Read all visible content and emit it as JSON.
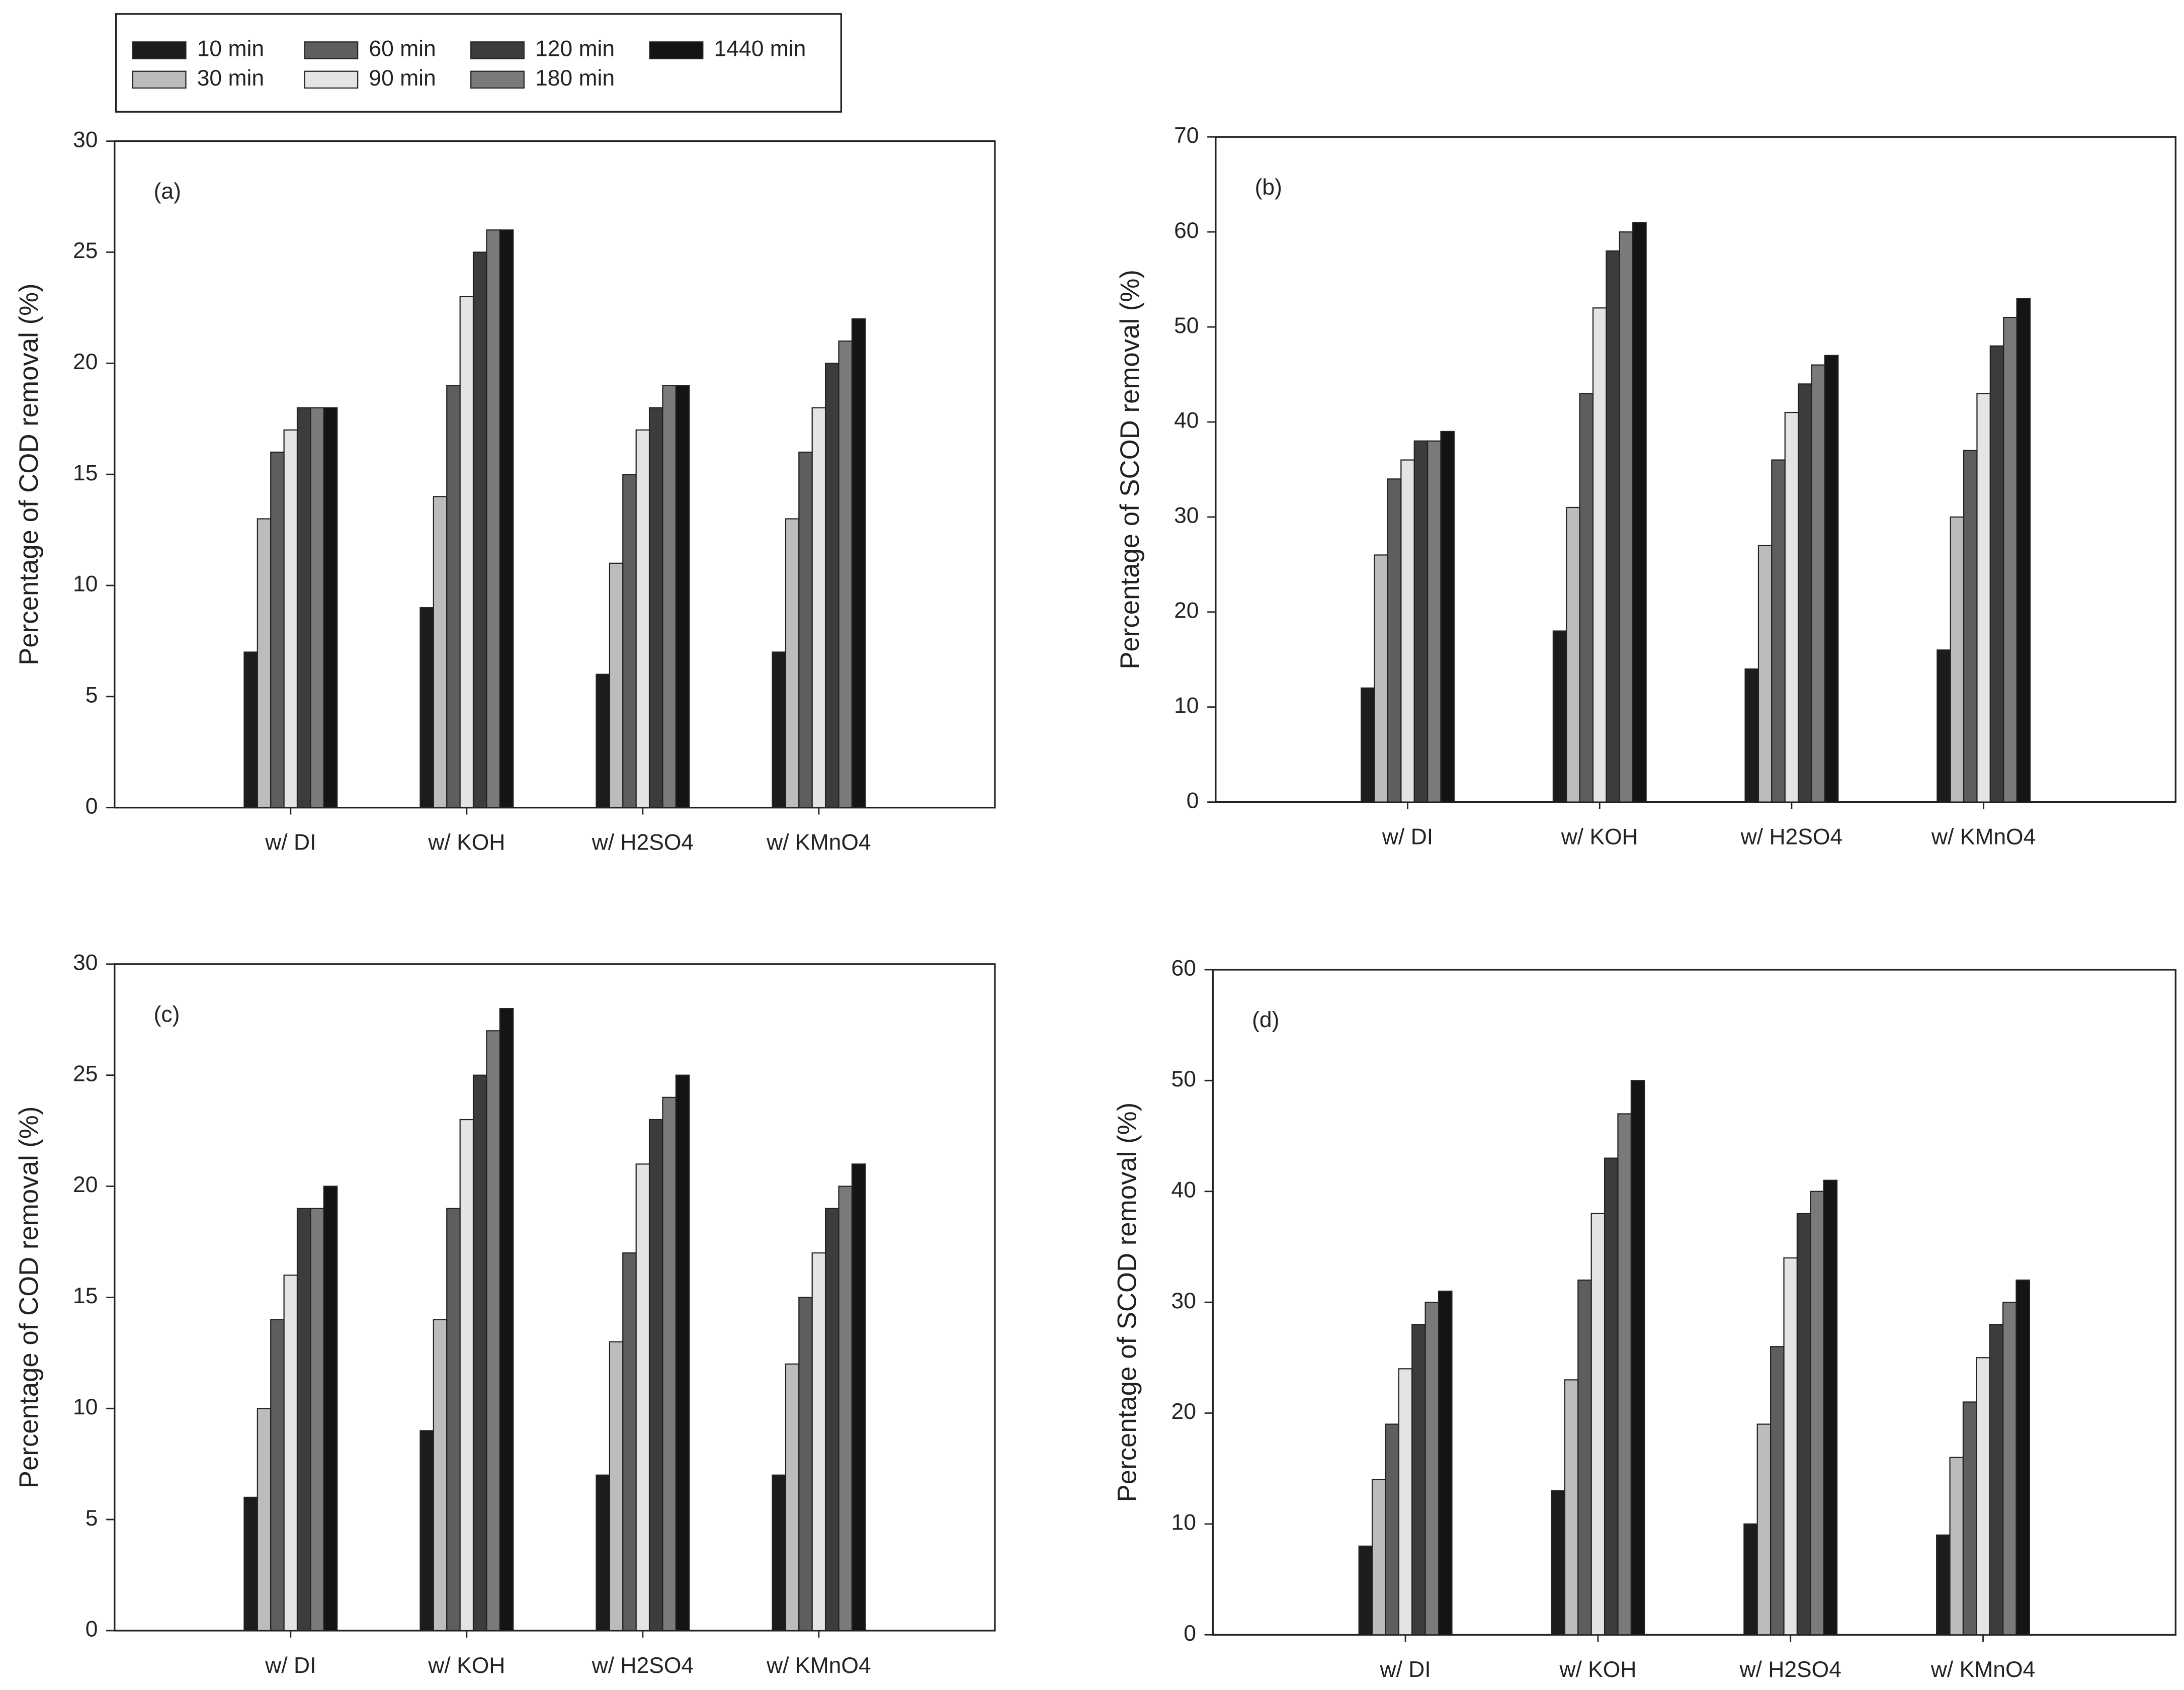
{
  "legend": [
    {
      "name": "10 min",
      "color": "#1c1c1c"
    },
    {
      "name": "30 min",
      "color": "#bcbcbc"
    },
    {
      "name": "60 min",
      "color": "#5e5e5e"
    },
    {
      "name": "90 min",
      "color": "#e4e4e4"
    },
    {
      "name": "120 min",
      "color": "#3c3c3c"
    },
    {
      "name": "180 min",
      "color": "#7a7a7a"
    },
    {
      "name": "1440 min",
      "color": "#141414"
    }
  ],
  "chart_data": [
    {
      "type": "bar",
      "panel": "(a)",
      "y_label": "Percentage of COD removal (%)",
      "categories": [
        "w/ DI",
        "w/ KOH",
        "w/ H2SO4",
        "w/ KMnO4"
      ],
      "series": [
        {
          "values": [
            7,
            9,
            6,
            7
          ]
        },
        {
          "values": [
            13,
            14,
            11,
            13
          ]
        },
        {
          "values": [
            16,
            19,
            15,
            16
          ]
        },
        {
          "values": [
            17,
            23,
            17,
            18
          ]
        },
        {
          "values": [
            18,
            25,
            18,
            20
          ]
        },
        {
          "values": [
            18,
            26,
            19,
            21
          ]
        },
        {
          "values": [
            18,
            26,
            19,
            22
          ]
        }
      ],
      "ylim": [
        0,
        30
      ],
      "yticks": [
        0,
        5,
        10,
        15,
        20,
        25,
        30
      ]
    },
    {
      "type": "bar",
      "panel": "(b)",
      "y_label": "Percentage of SCOD removal (%)",
      "categories": [
        "w/ DI",
        "w/ KOH",
        "w/ H2SO4",
        "w/ KMnO4"
      ],
      "series": [
        {
          "values": [
            12,
            18,
            14,
            16
          ]
        },
        {
          "values": [
            26,
            31,
            27,
            30
          ]
        },
        {
          "values": [
            34,
            43,
            36,
            37
          ]
        },
        {
          "values": [
            36,
            52,
            41,
            43
          ]
        },
        {
          "values": [
            38,
            58,
            44,
            48
          ]
        },
        {
          "values": [
            38,
            60,
            46,
            51
          ]
        },
        {
          "values": [
            39,
            61,
            47,
            53
          ]
        }
      ],
      "ylim": [
        0,
        70
      ],
      "yticks": [
        0,
        10,
        20,
        30,
        40,
        50,
        60,
        70
      ]
    },
    {
      "type": "bar",
      "panel": "(c)",
      "y_label": "Percentage of COD removal (%)",
      "categories": [
        "w/ DI",
        "w/ KOH",
        "w/ H2SO4",
        "w/ KMnO4"
      ],
      "series": [
        {
          "values": [
            6,
            9,
            7,
            7
          ]
        },
        {
          "values": [
            10,
            14,
            13,
            12
          ]
        },
        {
          "values": [
            14,
            19,
            17,
            15
          ]
        },
        {
          "values": [
            16,
            23,
            21,
            17
          ]
        },
        {
          "values": [
            19,
            25,
            23,
            19
          ]
        },
        {
          "values": [
            19,
            27,
            24,
            20
          ]
        },
        {
          "values": [
            20,
            28,
            25,
            21
          ]
        }
      ],
      "ylim": [
        0,
        30
      ],
      "yticks": [
        0,
        5,
        10,
        15,
        20,
        25,
        30
      ]
    },
    {
      "type": "bar",
      "panel": "(d)",
      "y_label": "Percentage of SCOD removal (%)",
      "categories": [
        "w/ DI",
        "w/ KOH",
        "w/ H2SO4",
        "w/ KMnO4"
      ],
      "series": [
        {
          "values": [
            8,
            13,
            10,
            9
          ]
        },
        {
          "values": [
            14,
            23,
            19,
            16
          ]
        },
        {
          "values": [
            19,
            32,
            26,
            21
          ]
        },
        {
          "values": [
            24,
            38,
            34,
            25
          ]
        },
        {
          "values": [
            28,
            43,
            38,
            28
          ]
        },
        {
          "values": [
            30,
            47,
            40,
            30
          ]
        },
        {
          "values": [
            31,
            50,
            41,
            32
          ]
        }
      ],
      "ylim": [
        0,
        60
      ],
      "yticks": [
        0,
        10,
        20,
        30,
        40,
        50,
        60
      ]
    }
  ]
}
